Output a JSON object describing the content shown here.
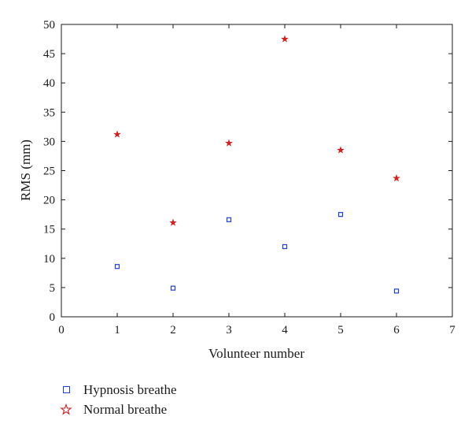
{
  "chart_data": {
    "type": "scatter",
    "xlabel": "Volunteer number",
    "ylabel": "RMS (mm)",
    "xlim": [
      0,
      7
    ],
    "ylim": [
      0,
      50
    ],
    "xticks": [
      "0",
      "1",
      "2",
      "3",
      "4",
      "5",
      "6",
      "7"
    ],
    "yticks": [
      "0",
      "5",
      "10",
      "15",
      "20",
      "25",
      "30",
      "35",
      "40",
      "45",
      "50"
    ],
    "grid": false,
    "legend_position": "bottom-left, below plot",
    "series": [
      {
        "name": "Hypnosis breathe",
        "marker": "square",
        "color": "#1f3fd0",
        "x": [
          1,
          2,
          3,
          4,
          5,
          6
        ],
        "y": [
          8.6,
          4.9,
          16.6,
          12.0,
          17.5,
          4.4
        ]
      },
      {
        "name": "Normal breathe",
        "marker": "star",
        "color": "#d42020",
        "x": [
          1,
          2,
          3,
          4,
          5,
          6
        ],
        "y": [
          31.2,
          16.1,
          29.7,
          47.5,
          28.5,
          23.7
        ]
      }
    ]
  }
}
